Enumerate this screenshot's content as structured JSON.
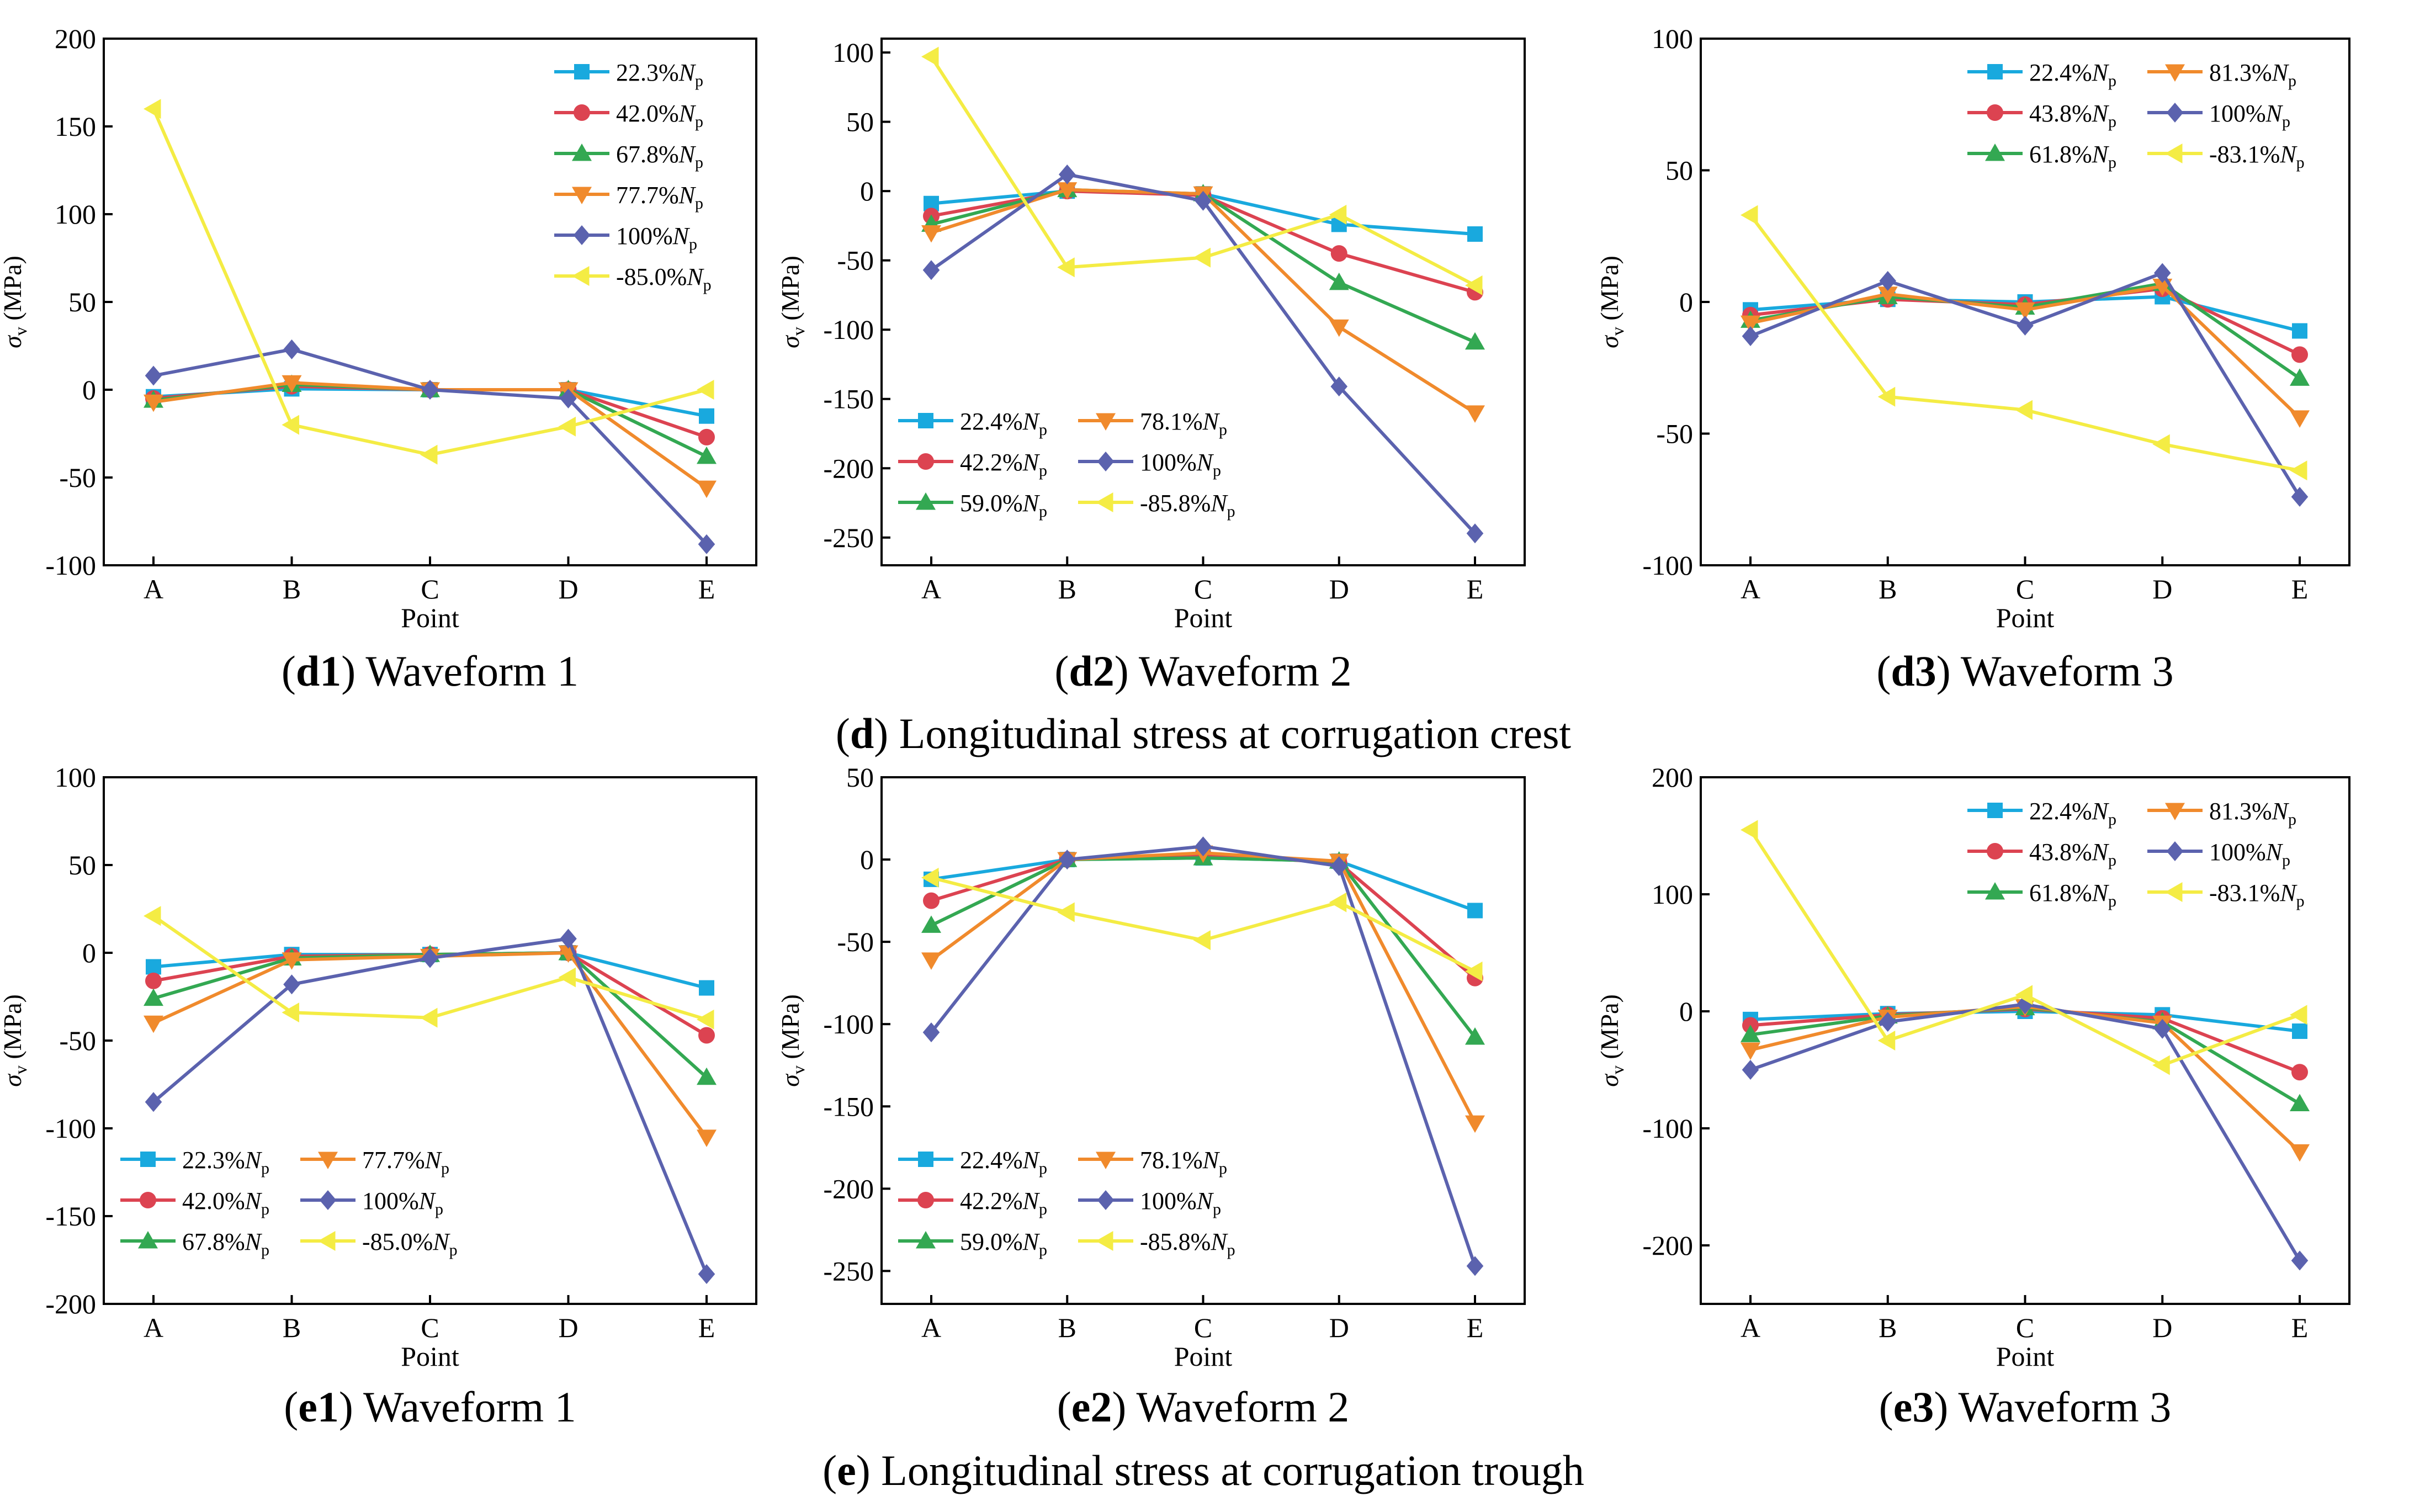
{
  "colors": {
    "s1": "#19a9de",
    "s2": "#dc4351",
    "s3": "#33a852",
    "s4": "#f08a2c",
    "s5": "#5b62ae",
    "s6": "#f4ec44",
    "axis": "#000000"
  },
  "groups": [
    {
      "label": "d",
      "text": " Longitudinal stress at corrugation crest"
    },
    {
      "label": "e",
      "text": " Longitudinal stress at corrugation trough"
    }
  ],
  "chart_data": [
    {
      "type": "line",
      "id": "d1",
      "caption_label": "d1",
      "caption_text": " Waveform 1",
      "xlabel": "Point",
      "ylabel_main": "σ",
      "ylabel_sub": "v",
      "ylabel_unit": " (MPa)",
      "categories": [
        "A",
        "B",
        "C",
        "D",
        "E"
      ],
      "ylim": [
        -100,
        200
      ],
      "yticks": [
        -100,
        -50,
        0,
        50,
        100,
        150,
        200
      ],
      "ytick_labels": [
        "-100",
        "-50",
        "0",
        "50",
        "100",
        "150",
        "200"
      ],
      "legend_position": "top-right",
      "legend_columns": 1,
      "series": [
        {
          "name": "22.3%",
          "marker": "square",
          "color_key": "s1",
          "values": [
            -4,
            0.5,
            0,
            0,
            -15
          ]
        },
        {
          "name": "42.0%",
          "marker": "circle",
          "color_key": "s2",
          "values": [
            -5,
            2,
            0,
            0,
            -27
          ]
        },
        {
          "name": "67.8%",
          "marker": "triangle-up",
          "color_key": "s3",
          "values": [
            -6,
            3,
            0,
            0,
            -38
          ]
        },
        {
          "name": "77.7%",
          "marker": "triangle-down",
          "color_key": "s4",
          "values": [
            -7,
            4,
            0,
            0,
            -56
          ]
        },
        {
          "name": "100%",
          "marker": "diamond",
          "color_key": "s5",
          "values": [
            8,
            23,
            0,
            -5,
            -88
          ]
        },
        {
          "name": "-85.0%",
          "marker": "triangle-left",
          "color_key": "s6",
          "values": [
            160,
            -20,
            -37,
            -21,
            0
          ]
        }
      ]
    },
    {
      "type": "line",
      "id": "d2",
      "caption_label": "d2",
      "caption_text": " Waveform 2",
      "xlabel": "Point",
      "ylabel_main": "σ",
      "ylabel_sub": "v",
      "ylabel_unit": " (MPa)",
      "categories": [
        "A",
        "B",
        "C",
        "D",
        "E"
      ],
      "ylim": [
        -270,
        110
      ],
      "yticks": [
        -250,
        -200,
        -150,
        -100,
        -50,
        0,
        50,
        100
      ],
      "ytick_labels": [
        "-250",
        "-200",
        "-150",
        "-100",
        "-50",
        "0",
        "50",
        "100"
      ],
      "legend_position": "bottom-left",
      "legend_columns": 2,
      "series": [
        {
          "name": "22.4%",
          "marker": "square",
          "color_key": "s1",
          "values": [
            -9,
            0,
            -2,
            -24,
            -31
          ]
        },
        {
          "name": "42.2%",
          "marker": "circle",
          "color_key": "s2",
          "values": [
            -18,
            0,
            -3,
            -45,
            -73
          ]
        },
        {
          "name": "59.0%",
          "marker": "triangle-up",
          "color_key": "s3",
          "values": [
            -24,
            1,
            -2,
            -66,
            -109
          ]
        },
        {
          "name": "78.1%",
          "marker": "triangle-down",
          "color_key": "s4",
          "values": [
            -30,
            1,
            -2,
            -98,
            -160
          ]
        },
        {
          "name": "100%",
          "marker": "diamond",
          "color_key": "s5",
          "values": [
            -57,
            12,
            -7,
            -141,
            -247
          ]
        },
        {
          "name": "-85.8%",
          "marker": "triangle-left",
          "color_key": "s6",
          "values": [
            97,
            -55,
            -48,
            -17,
            -68
          ]
        }
      ]
    },
    {
      "type": "line",
      "id": "d3",
      "caption_label": "d3",
      "caption_text": " Waveform 3",
      "xlabel": "Point",
      "ylabel_main": "σ",
      "ylabel_sub": "v",
      "ylabel_unit": " (MPa)",
      "categories": [
        "A",
        "B",
        "C",
        "D",
        "E"
      ],
      "ylim": [
        -100,
        100
      ],
      "yticks": [
        -100,
        -50,
        0,
        50,
        100
      ],
      "ytick_labels": [
        "-100",
        "-50",
        "0",
        "50",
        "100"
      ],
      "legend_position": "top-right",
      "legend_columns": 2,
      "series": [
        {
          "name": "22.4%",
          "marker": "square",
          "color_key": "s1",
          "values": [
            -3,
            1,
            0,
            2,
            -11
          ]
        },
        {
          "name": "43.8%",
          "marker": "circle",
          "color_key": "s2",
          "values": [
            -5,
            1,
            -1,
            5,
            -20
          ]
        },
        {
          "name": "61.8%",
          "marker": "triangle-up",
          "color_key": "s3",
          "values": [
            -7,
            2,
            -2,
            7,
            -29
          ]
        },
        {
          "name": "81.3%",
          "marker": "triangle-down",
          "color_key": "s4",
          "values": [
            -8,
            3,
            -3,
            6,
            -44
          ]
        },
        {
          "name": "100%",
          "marker": "diamond",
          "color_key": "s5",
          "values": [
            -13,
            8,
            -9,
            11,
            -74
          ]
        },
        {
          "name": "-83.1%",
          "marker": "triangle-left",
          "color_key": "s6",
          "values": [
            33,
            -36,
            -41,
            -54,
            -64
          ]
        }
      ]
    },
    {
      "type": "line",
      "id": "e1",
      "caption_label": "e1",
      "caption_text": " Waveform 1",
      "xlabel": "Point",
      "ylabel_main": "σ",
      "ylabel_sub": "v",
      "ylabel_unit": " (MPa)",
      "categories": [
        "A",
        "B",
        "C",
        "D",
        "E"
      ],
      "ylim": [
        -200,
        100
      ],
      "yticks": [
        -200,
        -150,
        -100,
        -50,
        0,
        50,
        100
      ],
      "ytick_labels": [
        "-200",
        "-150",
        "-100",
        "-50",
        "0",
        "50",
        "100"
      ],
      "legend_position": "bottom-left",
      "legend_columns": 2,
      "series": [
        {
          "name": "22.3%",
          "marker": "square",
          "color_key": "s1",
          "values": [
            -8,
            -1,
            -1,
            0,
            -20
          ]
        },
        {
          "name": "42.0%",
          "marker": "circle",
          "color_key": "s2",
          "values": [
            -16,
            -2,
            -1,
            0,
            -47
          ]
        },
        {
          "name": "67.8%",
          "marker": "triangle-up",
          "color_key": "s3",
          "values": [
            -26,
            -3,
            -1,
            0,
            -71
          ]
        },
        {
          "name": "77.7%",
          "marker": "triangle-down",
          "color_key": "s4",
          "values": [
            -40,
            -4,
            -2,
            0,
            -105
          ]
        },
        {
          "name": "100%",
          "marker": "diamond",
          "color_key": "s5",
          "values": [
            -85,
            -18,
            -3,
            8,
            -183
          ]
        },
        {
          "name": "-85.0%",
          "marker": "triangle-left",
          "color_key": "s6",
          "values": [
            21,
            -34,
            -37,
            -14,
            -38
          ]
        }
      ]
    },
    {
      "type": "line",
      "id": "e2",
      "caption_label": "e2",
      "caption_text": " Waveform 2",
      "xlabel": "Point",
      "ylabel_main": "σ",
      "ylabel_sub": "v",
      "ylabel_unit": " (MPa)",
      "categories": [
        "A",
        "B",
        "C",
        "D",
        "E"
      ],
      "ylim": [
        -270,
        50
      ],
      "yticks": [
        -250,
        -200,
        -150,
        -100,
        -50,
        0,
        50
      ],
      "ytick_labels": [
        "-250",
        "-200",
        "-150",
        "-100",
        "-50",
        "0",
        "50"
      ],
      "legend_position": "bottom-left",
      "legend_columns": 2,
      "series": [
        {
          "name": "22.4%",
          "marker": "square",
          "color_key": "s1",
          "values": [
            -12,
            0,
            1,
            -1,
            -31
          ]
        },
        {
          "name": "42.2%",
          "marker": "circle",
          "color_key": "s2",
          "values": [
            -25,
            0,
            3,
            -2,
            -72
          ]
        },
        {
          "name": "59.0%",
          "marker": "triangle-up",
          "color_key": "s3",
          "values": [
            -40,
            0,
            1,
            -1,
            -108
          ]
        },
        {
          "name": "78.1%",
          "marker": "triangle-down",
          "color_key": "s4",
          "values": [
            -61,
            0,
            4,
            -1,
            -160
          ]
        },
        {
          "name": "100%",
          "marker": "diamond",
          "color_key": "s5",
          "values": [
            -105,
            0,
            8,
            -4,
            -247
          ]
        },
        {
          "name": "-85.8%",
          "marker": "triangle-left",
          "color_key": "s6",
          "values": [
            -11,
            -32,
            -49,
            -26,
            -68
          ]
        }
      ]
    },
    {
      "type": "line",
      "id": "e3",
      "caption_label": "e3",
      "caption_text": " Waveform 3",
      "xlabel": "Point",
      "ylabel_main": "σ",
      "ylabel_sub": "v",
      "ylabel_unit": " (MPa)",
      "categories": [
        "A",
        "B",
        "C",
        "D",
        "E"
      ],
      "ylim": [
        -250,
        200
      ],
      "yticks": [
        -200,
        -100,
        0,
        100,
        200
      ],
      "ytick_labels": [
        "-200",
        "-100",
        "0",
        "100",
        "200"
      ],
      "legend_position": "top-right",
      "legend_columns": 2,
      "series": [
        {
          "name": "22.4%",
          "marker": "square",
          "color_key": "s1",
          "values": [
            -7,
            -2,
            0,
            -3,
            -17
          ]
        },
        {
          "name": "43.8%",
          "marker": "circle",
          "color_key": "s2",
          "values": [
            -12,
            -3,
            2,
            -6,
            -52
          ]
        },
        {
          "name": "61.8%",
          "marker": "triangle-up",
          "color_key": "s3",
          "values": [
            -20,
            -4,
            3,
            -9,
            -79
          ]
        },
        {
          "name": "81.3%",
          "marker": "triangle-down",
          "color_key": "s4",
          "values": [
            -33,
            -5,
            4,
            -10,
            -120
          ]
        },
        {
          "name": "100%",
          "marker": "diamond",
          "color_key": "s5",
          "values": [
            -50,
            -9,
            6,
            -15,
            -213
          ]
        },
        {
          "name": "-83.1%",
          "marker": "triangle-left",
          "color_key": "s6",
          "values": [
            155,
            -25,
            14,
            -46,
            -3
          ]
        }
      ]
    }
  ],
  "legend_symbol": {
    "main": "N",
    "sub": "p"
  }
}
